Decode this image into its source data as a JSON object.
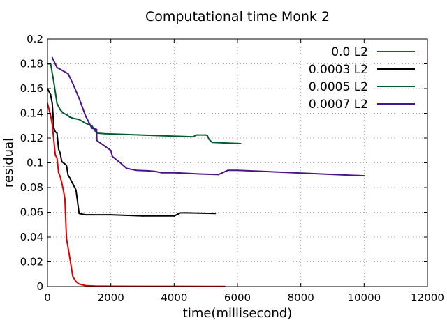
{
  "chart_data": {
    "type": "line",
    "title": "Computational time Monk 2",
    "xlabel": "time(millisecond)",
    "ylabel": "residual",
    "xlim": [
      0,
      12000
    ],
    "ylim": [
      0,
      0.2
    ],
    "xticks": [
      0,
      2000,
      4000,
      6000,
      8000,
      10000,
      12000
    ],
    "xtick_labels": [
      "0",
      "2000",
      "4000",
      "6000",
      "8000",
      "10000",
      "12000"
    ],
    "yticks": [
      0,
      0.02,
      0.04,
      0.06,
      0.08,
      0.1,
      0.12,
      0.14,
      0.16,
      0.18,
      0.2
    ],
    "ytick_labels": [
      "0",
      "0.02",
      "0.04",
      "0.06",
      "0.08",
      "0.1",
      "0.12",
      "0.14",
      "0.16",
      "0.18",
      "0.2"
    ],
    "grid": true,
    "legend_position": "top-right",
    "series": [
      {
        "name": "0.0 L2",
        "color": "#e00000",
        "points": [
          [
            0,
            0.148
          ],
          [
            100,
            0.138
          ],
          [
            150,
            0.131
          ],
          [
            200,
            0.118
          ],
          [
            250,
            0.106
          ],
          [
            300,
            0.104
          ],
          [
            350,
            0.092
          ],
          [
            400,
            0.089
          ],
          [
            450,
            0.084
          ],
          [
            500,
            0.078
          ],
          [
            550,
            0.071
          ],
          [
            600,
            0.039
          ],
          [
            700,
            0.024
          ],
          [
            800,
            0.008
          ],
          [
            900,
            0.004
          ],
          [
            1000,
            0.002
          ],
          [
            1200,
            0.0008
          ],
          [
            1500,
            0.0004
          ],
          [
            2000,
            0.0003
          ],
          [
            3000,
            0.0002
          ],
          [
            4000,
            0.0002
          ],
          [
            5000,
            0.0001
          ],
          [
            5600,
            0.0001
          ]
        ]
      },
      {
        "name": "0.0003 L2",
        "color": "#000000",
        "points": [
          [
            0,
            0.16
          ],
          [
            100,
            0.155
          ],
          [
            150,
            0.148
          ],
          [
            200,
            0.128
          ],
          [
            250,
            0.125
          ],
          [
            300,
            0.124
          ],
          [
            350,
            0.111
          ],
          [
            400,
            0.108
          ],
          [
            450,
            0.101
          ],
          [
            500,
            0.1
          ],
          [
            550,
            0.099
          ],
          [
            600,
            0.098
          ],
          [
            650,
            0.09
          ],
          [
            700,
            0.088
          ],
          [
            800,
            0.083
          ],
          [
            900,
            0.078
          ],
          [
            1000,
            0.059
          ],
          [
            1200,
            0.058
          ],
          [
            1400,
            0.058
          ],
          [
            2000,
            0.058
          ],
          [
            3000,
            0.057
          ],
          [
            4000,
            0.057
          ],
          [
            4200,
            0.0595
          ],
          [
            4400,
            0.0595
          ],
          [
            5300,
            0.059
          ]
        ]
      },
      {
        "name": "0.0005 L2",
        "color": "#005a32",
        "points": [
          [
            0,
            0.18
          ],
          [
            100,
            0.18
          ],
          [
            200,
            0.165
          ],
          [
            300,
            0.148
          ],
          [
            400,
            0.143
          ],
          [
            500,
            0.14
          ],
          [
            600,
            0.139
          ],
          [
            700,
            0.137
          ],
          [
            800,
            0.136
          ],
          [
            1000,
            0.135
          ],
          [
            1200,
            0.132
          ],
          [
            1400,
            0.13
          ],
          [
            1550,
            0.124
          ],
          [
            1800,
            0.1235
          ],
          [
            4600,
            0.121
          ],
          [
            4700,
            0.1225
          ],
          [
            5000,
            0.1225
          ],
          [
            5050,
            0.122
          ],
          [
            5100,
            0.119
          ],
          [
            5200,
            0.1165
          ],
          [
            6100,
            0.1155
          ]
        ]
      },
      {
        "name": "0.0007 L2",
        "color": "#4a1486",
        "points": [
          [
            150,
            0.185
          ],
          [
            300,
            0.177
          ],
          [
            650,
            0.172
          ],
          [
            800,
            0.164
          ],
          [
            1000,
            0.152
          ],
          [
            1200,
            0.138
          ],
          [
            1400,
            0.128
          ],
          [
            1550,
            0.127
          ],
          [
            1560,
            0.118
          ],
          [
            2000,
            0.11
          ],
          [
            2050,
            0.105
          ],
          [
            2300,
            0.1
          ],
          [
            2500,
            0.0955
          ],
          [
            2800,
            0.094
          ],
          [
            3200,
            0.0935
          ],
          [
            3400,
            0.093
          ],
          [
            3600,
            0.092
          ],
          [
            4000,
            0.092
          ],
          [
            4800,
            0.091
          ],
          [
            5400,
            0.0905
          ],
          [
            5700,
            0.094
          ],
          [
            6000,
            0.094
          ],
          [
            10000,
            0.0895
          ]
        ]
      }
    ]
  }
}
